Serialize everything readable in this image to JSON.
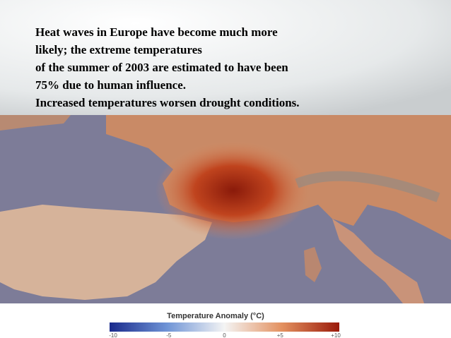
{
  "text": {
    "lines": [
      "Heat waves in Europe have become much more",
      "likely; the extreme temperatures",
      "of the summer of 2003 are estimated to have been",
      "75% due to human influence.",
      "Increased temperatures worsen drought conditions."
    ]
  },
  "map": {
    "legend_title": "Temperature Anomaly (°C)",
    "legend_ticks": [
      "-10",
      "-5",
      "0",
      "+5",
      "+10"
    ]
  }
}
